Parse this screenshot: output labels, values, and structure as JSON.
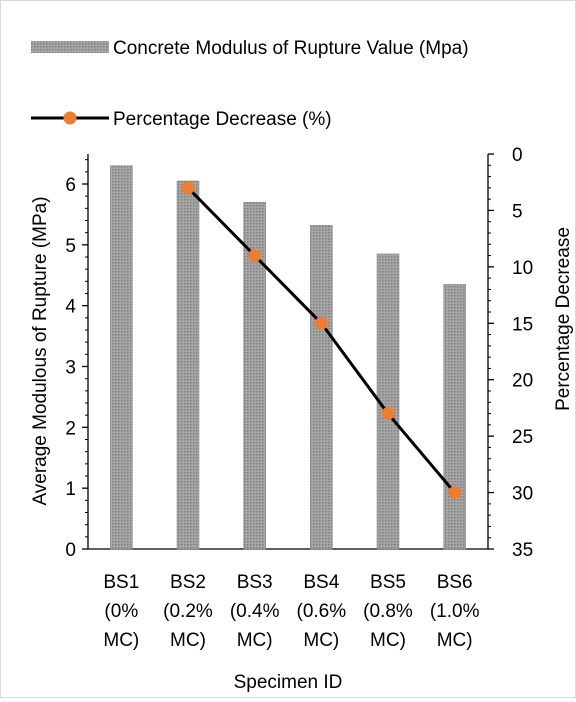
{
  "chart_data": {
    "type": "bar",
    "categories": [
      [
        "BS1",
        "(0%",
        "MC)"
      ],
      [
        "BS2",
        "(0.2%",
        "MC)"
      ],
      [
        "BS3",
        "(0.4%",
        "MC)"
      ],
      [
        "BS4",
        "(0.6%",
        "MC)"
      ],
      [
        "BS5",
        "(0.8%",
        "MC)"
      ],
      [
        "BS6",
        "(1.0%",
        "MC)"
      ]
    ],
    "series": [
      {
        "name": "Concrete Modulus of Rupture Value (Mpa)",
        "type": "bar",
        "axis": "left",
        "values": [
          6.3,
          6.05,
          5.7,
          5.32,
          4.85,
          4.35
        ],
        "color": "#a6a6a6"
      },
      {
        "name": "Percentage Decrease (%)",
        "type": "line",
        "axis": "right",
        "values": [
          null,
          3,
          9,
          15,
          23,
          30
        ],
        "line_color": "#000000",
        "marker_color": "#ed7d31"
      }
    ],
    "xlabel": "Specimen ID",
    "ylabel": "Average Modulous of Rupture (MPa)",
    "y2label": "Percentage Decrease",
    "ylim": [
      0,
      6.5
    ],
    "yticks": [
      "0",
      "1",
      "2",
      "3",
      "4",
      "5",
      "6"
    ],
    "y2lim": [
      0,
      35
    ],
    "y2_reversed": true,
    "y2ticks": [
      "0",
      "5",
      "10",
      "15",
      "20",
      "25",
      "30",
      "35"
    ],
    "legend_position": "top",
    "grid": false
  }
}
